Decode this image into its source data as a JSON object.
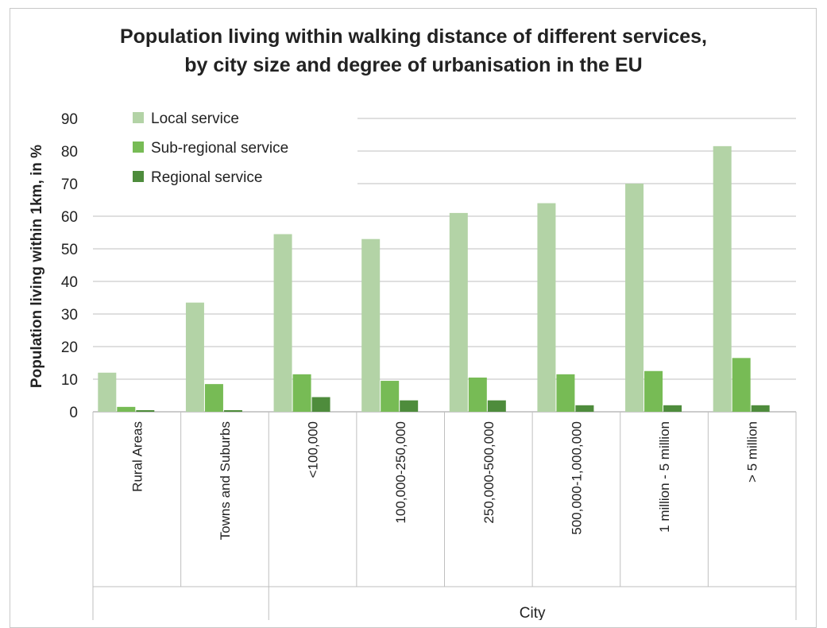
{
  "chart_data": {
    "type": "bar",
    "title_lines": [
      "Population living within walking distance of different services,",
      "by city size and degree of urbanisation in the EU"
    ],
    "ylabel": "Population living within 1km, in %",
    "ylim": [
      0,
      90
    ],
    "yticks": [
      0,
      10,
      20,
      30,
      40,
      50,
      60,
      70,
      80,
      90
    ],
    "categories": [
      "Rural Areas",
      "Towns and Suburbs",
      "<100,000",
      "100,000-250,000",
      "250,000-500,000",
      "500,000-1,000,000",
      "1 million - 5 million",
      "> 5 million"
    ],
    "group_label": "City",
    "grid": true,
    "legend_position": "top-left",
    "series": [
      {
        "name": "Local service",
        "color": "#b3d3a6",
        "values": [
          12,
          33.5,
          54.5,
          53,
          61,
          64,
          70,
          81.5
        ]
      },
      {
        "name": "Sub-regional service",
        "color": "#77bb55",
        "values": [
          1.5,
          8.5,
          11.5,
          9.5,
          10.5,
          11.5,
          12.5,
          16.5
        ]
      },
      {
        "name": "Regional service",
        "color": "#4e8c3c",
        "values": [
          0.5,
          0.5,
          4.5,
          3.5,
          3.5,
          2,
          2,
          2
        ]
      }
    ]
  }
}
